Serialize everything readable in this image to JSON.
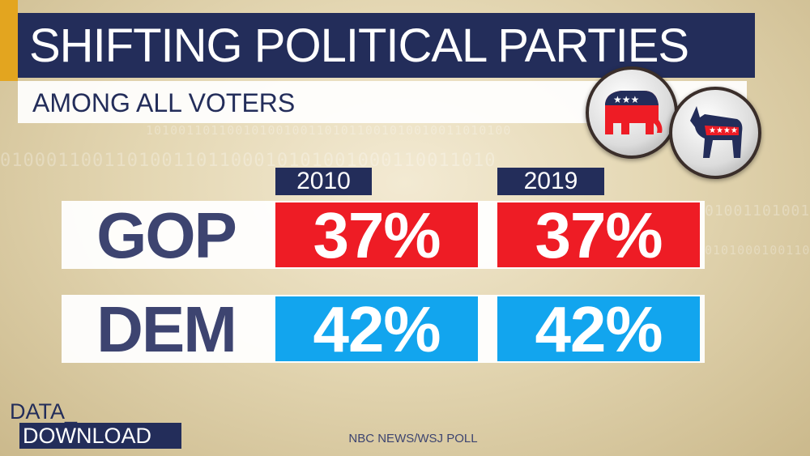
{
  "header": {
    "title": "SHIFTING POLITICAL PARTIES",
    "subtitle": "AMONG ALL VOTERS"
  },
  "chart_data": {
    "type": "table",
    "columns": [
      "2010",
      "2019"
    ],
    "rows": [
      {
        "party": "GOP",
        "color": "#ee1c25",
        "values": [
          "37%",
          "37%"
        ]
      },
      {
        "party": "DEM",
        "color": "#12a5ee",
        "values": [
          "42%",
          "42%"
        ]
      }
    ]
  },
  "logos": {
    "republican": "elephant-icon",
    "democratic": "donkey-icon"
  },
  "footer": {
    "brand_line1": "DATA_",
    "brand_line2": "DOWNLOAD",
    "source": "NBC NEWS/WSJ POLL"
  },
  "colors": {
    "navy": "#232d5a",
    "gold": "#e3a51f",
    "gop_red": "#ee1c25",
    "dem_blue": "#12a5ee"
  }
}
